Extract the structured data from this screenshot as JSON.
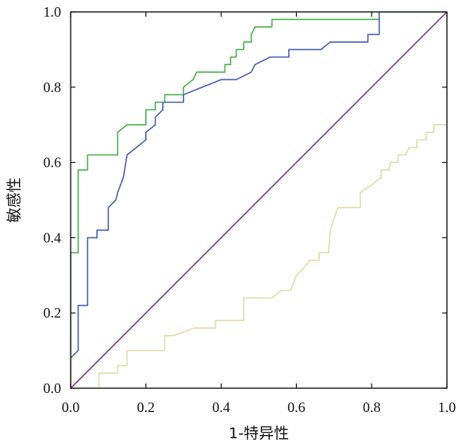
{
  "chart_data": {
    "type": "line",
    "title": "",
    "xlabel": "1-特异性",
    "ylabel": "敏感性",
    "xlim": [
      0,
      1
    ],
    "ylim": [
      0,
      1
    ],
    "grid": false,
    "x_ticks": [
      "0.0",
      "0.2",
      "0.4",
      "0.6",
      "0.8",
      "1.0"
    ],
    "y_ticks": [
      "0.0",
      "0.2",
      "0.4",
      "0.6",
      "0.8",
      "1.0"
    ],
    "series": [
      {
        "color": "#4caf50",
        "points": [
          [
            0,
            0
          ],
          [
            0,
            0.36
          ],
          [
            0.02,
            0.36
          ],
          [
            0.02,
            0.58
          ],
          [
            0.045,
            0.58
          ],
          [
            0.045,
            0.62
          ],
          [
            0.125,
            0.62
          ],
          [
            0.125,
            0.68
          ],
          [
            0.15,
            0.7
          ],
          [
            0.2,
            0.7
          ],
          [
            0.2,
            0.74
          ],
          [
            0.225,
            0.74
          ],
          [
            0.225,
            0.76
          ],
          [
            0.25,
            0.76
          ],
          [
            0.25,
            0.78
          ],
          [
            0.3,
            0.78
          ],
          [
            0.3,
            0.8
          ],
          [
            0.325,
            0.82
          ],
          [
            0.335,
            0.84
          ],
          [
            0.41,
            0.84
          ],
          [
            0.41,
            0.86
          ],
          [
            0.425,
            0.86
          ],
          [
            0.425,
            0.88
          ],
          [
            0.44,
            0.88
          ],
          [
            0.44,
            0.9
          ],
          [
            0.46,
            0.9
          ],
          [
            0.46,
            0.92
          ],
          [
            0.48,
            0.92
          ],
          [
            0.48,
            0.94
          ],
          [
            0.49,
            0.96
          ],
          [
            0.535,
            0.96
          ],
          [
            0.535,
            0.98
          ],
          [
            0.78,
            0.98
          ],
          [
            0.82,
            0.98
          ],
          [
            0.82,
            1.0
          ],
          [
            0.87,
            1.0
          ],
          [
            0.87,
            1.0
          ],
          [
            1,
            1
          ]
        ]
      },
      {
        "color": "#4a5fae",
        "points": [
          [
            0,
            0.08
          ],
          [
            0.02,
            0.1
          ],
          [
            0.02,
            0.22
          ],
          [
            0.045,
            0.22
          ],
          [
            0.045,
            0.4
          ],
          [
            0.07,
            0.4
          ],
          [
            0.07,
            0.42
          ],
          [
            0.1,
            0.42
          ],
          [
            0.1,
            0.48
          ],
          [
            0.12,
            0.5
          ],
          [
            0.125,
            0.52
          ],
          [
            0.14,
            0.56
          ],
          [
            0.15,
            0.62
          ],
          [
            0.2,
            0.66
          ],
          [
            0.2,
            0.68
          ],
          [
            0.225,
            0.7
          ],
          [
            0.225,
            0.72
          ],
          [
            0.245,
            0.74
          ],
          [
            0.245,
            0.76
          ],
          [
            0.3,
            0.76
          ],
          [
            0.3,
            0.78
          ],
          [
            0.35,
            0.8
          ],
          [
            0.4,
            0.82
          ],
          [
            0.44,
            0.82
          ],
          [
            0.48,
            0.84
          ],
          [
            0.49,
            0.86
          ],
          [
            0.53,
            0.88
          ],
          [
            0.58,
            0.88
          ],
          [
            0.58,
            0.9
          ],
          [
            0.665,
            0.9
          ],
          [
            0.69,
            0.92
          ],
          [
            0.79,
            0.92
          ],
          [
            0.79,
            0.94
          ],
          [
            0.82,
            0.94
          ],
          [
            0.82,
            1.0
          ]
        ]
      },
      {
        "color": "#e1dcaa",
        "points": [
          [
            0.075,
            0
          ],
          [
            0.075,
            0.04
          ],
          [
            0.125,
            0.04
          ],
          [
            0.125,
            0.06
          ],
          [
            0.15,
            0.06
          ],
          [
            0.15,
            0.1
          ],
          [
            0.2,
            0.1
          ],
          [
            0.25,
            0.1
          ],
          [
            0.25,
            0.14
          ],
          [
            0.275,
            0.14
          ],
          [
            0.33,
            0.16
          ],
          [
            0.385,
            0.16
          ],
          [
            0.385,
            0.18
          ],
          [
            0.46,
            0.18
          ],
          [
            0.46,
            0.24
          ],
          [
            0.535,
            0.24
          ],
          [
            0.56,
            0.26
          ],
          [
            0.585,
            0.26
          ],
          [
            0.6,
            0.3
          ],
          [
            0.62,
            0.32
          ],
          [
            0.635,
            0.34
          ],
          [
            0.66,
            0.34
          ],
          [
            0.66,
            0.36
          ],
          [
            0.685,
            0.36
          ],
          [
            0.69,
            0.42
          ],
          [
            0.71,
            0.48
          ],
          [
            0.77,
            0.48
          ],
          [
            0.77,
            0.52
          ],
          [
            0.8,
            0.54
          ],
          [
            0.825,
            0.56
          ],
          [
            0.825,
            0.58
          ],
          [
            0.845,
            0.58
          ],
          [
            0.85,
            0.6
          ],
          [
            0.87,
            0.6
          ],
          [
            0.87,
            0.62
          ],
          [
            0.89,
            0.62
          ],
          [
            0.9,
            0.64
          ],
          [
            0.92,
            0.64
          ],
          [
            0.92,
            0.66
          ],
          [
            0.945,
            0.66
          ],
          [
            0.945,
            0.68
          ],
          [
            0.965,
            0.68
          ],
          [
            0.965,
            0.7
          ],
          [
            0.975,
            0.7
          ],
          [
            1,
            0.7
          ]
        ]
      },
      {
        "color": "#7b3a8c",
        "points": [
          [
            0,
            0
          ],
          [
            1,
            1
          ]
        ]
      }
    ]
  }
}
